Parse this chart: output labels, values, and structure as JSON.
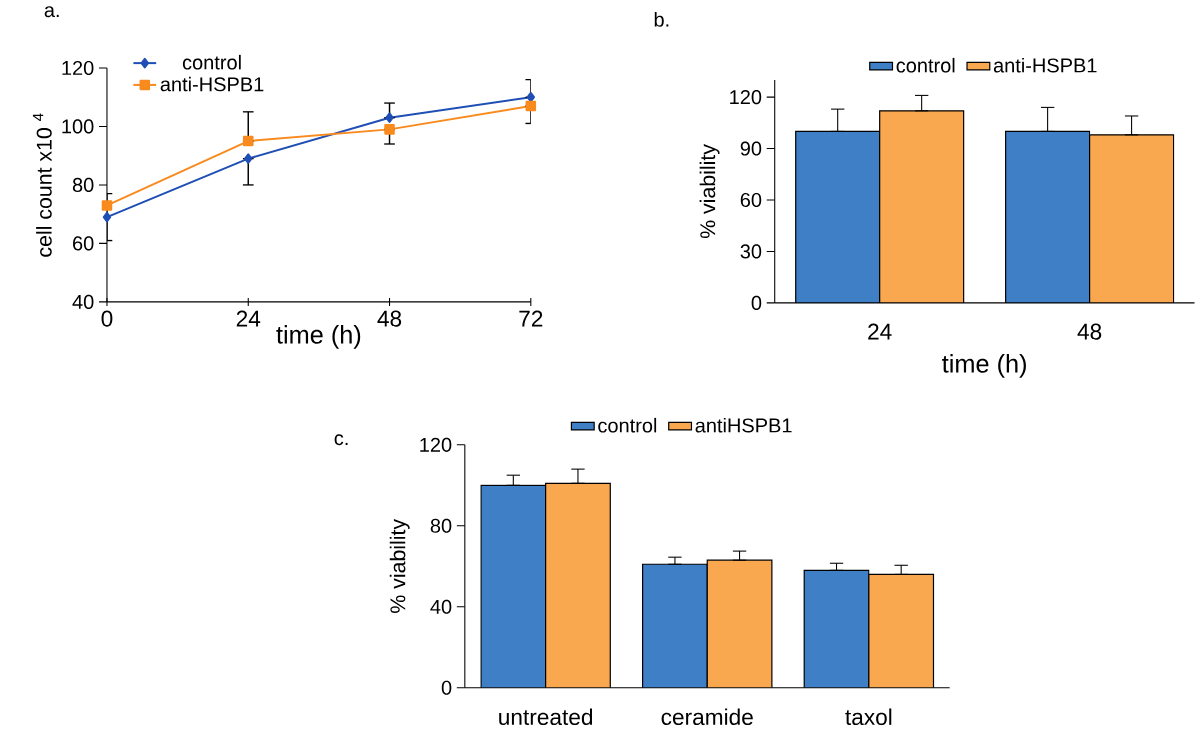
{
  "chart_data": [
    {
      "type": "line",
      "title": "a.",
      "xlabel": "time (h)",
      "ylabel": "cell count x10 $^{4}$",
      "x": [
        0,
        24,
        48,
        72
      ],
      "xlim": [
        0,
        72
      ],
      "xticks": [
        0,
        24,
        48,
        72
      ],
      "ylim": [
        40,
        120
      ],
      "yticks": [
        40,
        60,
        80,
        100,
        120
      ],
      "legend": "top left",
      "series": [
        {
          "name": "control",
          "color": "#1f4fb4",
          "marker": "diamond",
          "values": [
            69,
            89,
            103,
            110
          ],
          "errors": [
            [
              61,
              77
            ],
            [
              80,
              89
            ],
            [
              103,
              108
            ],
            [
              110,
              116
            ]
          ]
        },
        {
          "name": "anti-HSPB1",
          "color": "#f98a1e",
          "marker": "square",
          "values": [
            73,
            95,
            99,
            107
          ],
          "errors": [
            null,
            [
              95,
              105
            ],
            [
              94,
              99
            ],
            [
              101,
              107
            ]
          ]
        }
      ]
    },
    {
      "type": "bar",
      "title": "b.",
      "xlabel": "time (h)",
      "ylabel": "% viability",
      "categories": [
        "24",
        "48"
      ],
      "ylim": [
        0,
        130
      ],
      "yticks": [
        0,
        30,
        60,
        90,
        120
      ],
      "legend": "top",
      "series": [
        {
          "name": "control",
          "color": "#3f7fc6",
          "values": [
            100,
            100
          ],
          "errors": [
            [
              100,
              113
            ],
            [
              100,
              114
            ]
          ]
        },
        {
          "name": "anti-HSPB1",
          "color": "#f9a850",
          "values": [
            112,
            98
          ],
          "errors": [
            [
              112,
              121
            ],
            [
              98,
              109
            ]
          ]
        }
      ]
    },
    {
      "type": "bar",
      "title": "c.",
      "ylabel": "% viability",
      "categories": [
        "untreated",
        "ceramide",
        "taxol"
      ],
      "ylim": [
        0,
        120
      ],
      "yticks": [
        0,
        40,
        80,
        120
      ],
      "legend": "top",
      "series": [
        {
          "name": "control",
          "color": "#3f7fc6",
          "values": [
            100,
            61,
            58
          ],
          "errors": [
            [
              100,
              105
            ],
            [
              61,
              64.5
            ],
            [
              58,
              61.5
            ]
          ]
        },
        {
          "name": "antiHSPB1",
          "color": "#f9a850",
          "values": [
            101,
            63,
            56
          ],
          "errors": [
            [
              101,
              108
            ],
            [
              63,
              67.5
            ],
            [
              56,
              60.5
            ]
          ]
        }
      ]
    }
  ]
}
